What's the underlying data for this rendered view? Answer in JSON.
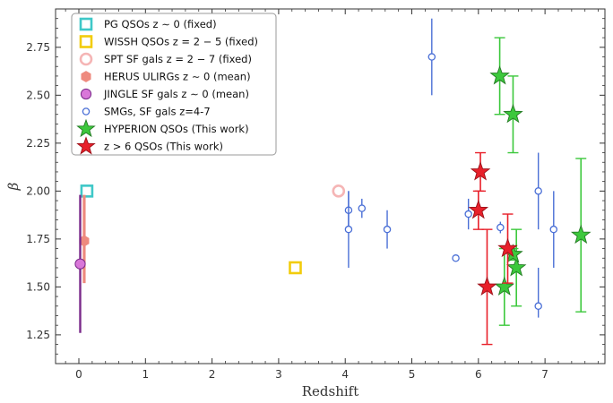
{
  "chart_data": {
    "type": "scatter",
    "xlabel": "Redshift",
    "ylabel": "β",
    "xlim": [
      -0.35,
      7.9
    ],
    "ylim": [
      1.1,
      2.95
    ],
    "x_ticks": [
      0,
      1,
      2,
      3,
      4,
      5,
      6,
      7
    ],
    "y_ticks": [
      1.25,
      1.5,
      1.75,
      2.0,
      2.25,
      2.5,
      2.75
    ],
    "y_tick_labels": [
      "1.25",
      "1.50",
      "1.75",
      "2.00",
      "2.25",
      "2.50",
      "2.75"
    ],
    "grid": false,
    "legend_position": "top-left",
    "series": [
      {
        "name": "PG QSOs z ∼ 0 (fixed)",
        "marker": "open-square",
        "color": "#3fc8c8",
        "points": [
          {
            "x": 0.12,
            "y": 2.0
          }
        ]
      },
      {
        "name": "WISSH QSOs z = 2 − 5 (fixed)",
        "marker": "open-square",
        "color": "#f2cc0c",
        "points": [
          {
            "x": 3.25,
            "y": 1.6
          }
        ]
      },
      {
        "name": "SPT SF gals z = 2 − 7 (fixed)",
        "marker": "open-circle",
        "color": "#f5b5b5",
        "points": [
          {
            "x": 3.9,
            "y": 2.0
          }
        ]
      },
      {
        "name": "HERUS ULIRGs z ∼ 0 (mean)",
        "marker": "filled-hexagon",
        "color": "#ee8a7e",
        "points": [
          {
            "x": 0.08,
            "y": 1.74,
            "yerr_low": 0.22,
            "yerr_high": 0.24
          }
        ]
      },
      {
        "name": "JINGLE SF gals z ∼ 0 (mean)",
        "marker": "filled-circle",
        "color": "#d977d9",
        "edge_color": "#7a2a8a",
        "points": [
          {
            "x": 0.02,
            "y": 1.62,
            "yerr_low": 0.36,
            "yerr_high": 0.36
          }
        ]
      },
      {
        "name": "SMGs, SF gals z=4-7",
        "marker": "open-circle-small",
        "color": "#4a6fd6",
        "points": [
          {
            "x": 4.05,
            "y": 1.9,
            "yerr_low": 0.1,
            "yerr_high": 0.1
          },
          {
            "x": 4.05,
            "y": 1.8,
            "yerr_low": 0.2,
            "yerr_high": 0.2
          },
          {
            "x": 4.25,
            "y": 1.91,
            "yerr_low": 0.05,
            "yerr_high": 0.05
          },
          {
            "x": 4.63,
            "y": 1.8,
            "yerr_low": 0.1,
            "yerr_high": 0.1
          },
          {
            "x": 5.3,
            "y": 2.7,
            "yerr_low": 0.2,
            "yerr_high": 0.2
          },
          {
            "x": 5.66,
            "y": 1.65,
            "yerr_low": 0,
            "yerr_high": 0
          },
          {
            "x": 5.85,
            "y": 1.88,
            "yerr_low": 0.08,
            "yerr_high": 0.08
          },
          {
            "x": 6.33,
            "y": 1.81,
            "yerr_low": 0.03,
            "yerr_high": 0.03
          },
          {
            "x": 6.9,
            "y": 2.0,
            "yerr_low": 0.2,
            "yerr_high": 0.2
          },
          {
            "x": 6.9,
            "y": 1.4,
            "yerr_low": 0.06,
            "yerr_high": 0.2
          },
          {
            "x": 7.13,
            "y": 1.8,
            "yerr_low": 0.2,
            "yerr_high": 0.2
          }
        ]
      },
      {
        "name": "HYPERION QSOs (This work)",
        "marker": "star",
        "color": "#3cc83c",
        "edge_color": "#237a23",
        "points": [
          {
            "x": 6.32,
            "y": 2.6,
            "yerr_low": 0.2,
            "yerr_high": 0.2
          },
          {
            "x": 6.52,
            "y": 2.4,
            "yerr_low": 0.2,
            "yerr_high": 0.2
          },
          {
            "x": 6.39,
            "y": 1.5,
            "yerr_low": 0.2,
            "yerr_high": 0.2
          },
          {
            "x": 6.57,
            "y": 1.6,
            "yerr_low": 0.2,
            "yerr_high": 0.2
          },
          {
            "x": 6.52,
            "y": 1.67,
            "yerr_low": 0.03,
            "yerr_high": 0.03
          },
          {
            "x": 7.54,
            "y": 1.77,
            "yerr_low": 0.4,
            "yerr_high": 0.4
          }
        ]
      },
      {
        "name": "z > 6 QSOs (This work)",
        "marker": "star",
        "color": "#e8202a",
        "edge_color": "#9a1018",
        "points": [
          {
            "x": 6.03,
            "y": 2.1,
            "yerr_low": 0.1,
            "yerr_high": 0.1
          },
          {
            "x": 6.0,
            "y": 1.9,
            "yerr_low": 0.1,
            "yerr_high": 0.1
          },
          {
            "x": 6.13,
            "y": 1.5,
            "yerr_low": 0.3,
            "yerr_high": 0.3
          },
          {
            "x": 6.44,
            "y": 1.7,
            "yerr_low": 0.18,
            "yerr_high": 0.18
          }
        ]
      }
    ]
  }
}
